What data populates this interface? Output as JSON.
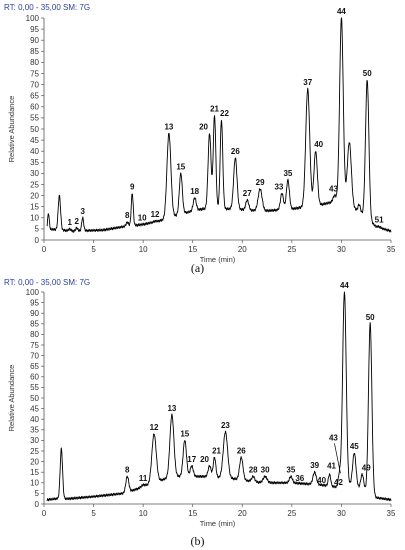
{
  "chart_data": [
    {
      "type": "line",
      "panel_label": "(a)",
      "header": {
        "rt_key": "RT:",
        "rt_value": "0,00 - 35,00",
        "sm_key": "SM:",
        "sm_value": "7G"
      },
      "xlabel": "Time (min)",
      "ylabel": "Relative Abundance",
      "xlim": [
        0,
        35
      ],
      "ylim": [
        0,
        100
      ],
      "xticks": [
        0,
        5,
        10,
        15,
        20,
        25,
        30,
        35
      ],
      "yticks": [
        0,
        5,
        10,
        15,
        20,
        25,
        30,
        35,
        40,
        45,
        50,
        55,
        60,
        65,
        70,
        75,
        80,
        85,
        90,
        95,
        100
      ],
      "baseline": [
        [
          0.3,
          5
        ],
        [
          3,
          4
        ],
        [
          6,
          4.5
        ],
        [
          8,
          6
        ],
        [
          10,
          7
        ],
        [
          12,
          9
        ],
        [
          14,
          12
        ],
        [
          16,
          14
        ],
        [
          19,
          14
        ],
        [
          22,
          13
        ],
        [
          25,
          14
        ],
        [
          28,
          16
        ],
        [
          30,
          18
        ],
        [
          32,
          12
        ],
        [
          33.5,
          6
        ],
        [
          35,
          4
        ]
      ],
      "peaks": [
        {
          "t": 0.45,
          "h": 12,
          "w": 0.08
        },
        {
          "t": 1.55,
          "h": 20,
          "w": 0.12
        },
        {
          "label": "1",
          "t": 2.6,
          "h": 5,
          "w": 0.1
        },
        {
          "label": "2",
          "t": 3.3,
          "h": 5.5,
          "w": 0.1
        },
        {
          "label": "3",
          "t": 3.9,
          "h": 10,
          "w": 0.1
        },
        {
          "label": "8",
          "t": 8.4,
          "h": 8,
          "w": 0.12
        },
        {
          "label": "9",
          "t": 8.9,
          "h": 21,
          "w": 0.1
        },
        {
          "label": "10",
          "t": 9.9,
          "h": 7,
          "w": 0.12
        },
        {
          "label": "12",
          "t": 11.2,
          "h": 8.5,
          "w": 0.12
        },
        {
          "label": "13",
          "t": 12.6,
          "h": 48,
          "w": 0.2
        },
        {
          "label": "15",
          "t": 13.8,
          "h": 30,
          "w": 0.15
        },
        {
          "label": "18",
          "t": 15.2,
          "h": 19,
          "w": 0.15
        },
        {
          "label": "20",
          "t": 16.7,
          "h": 48,
          "w": 0.15
        },
        {
          "label": "21",
          "t": 17.2,
          "h": 56,
          "w": 0.13
        },
        {
          "label": "22",
          "t": 17.9,
          "h": 54,
          "w": 0.13
        },
        {
          "label": "26",
          "t": 19.3,
          "h": 37,
          "w": 0.17
        },
        {
          "label": "27",
          "t": 20.5,
          "h": 18,
          "w": 0.15
        },
        {
          "label": "29",
          "t": 21.8,
          "h": 23,
          "w": 0.2
        },
        {
          "label": "33",
          "t": 24.0,
          "h": 21,
          "w": 0.15
        },
        {
          "label": "35",
          "t": 24.6,
          "h": 27,
          "w": 0.15
        },
        {
          "label": "37",
          "t": 26.6,
          "h": 68,
          "w": 0.2
        },
        {
          "label": "40",
          "t": 27.4,
          "h": 40,
          "w": 0.17
        },
        {
          "label": "43",
          "t": 29.3,
          "h": 20,
          "w": 0.15
        },
        {
          "label": "44",
          "t": 30.0,
          "h": 100,
          "w": 0.18
        },
        {
          "t": 30.8,
          "h": 44,
          "w": 0.2
        },
        {
          "t": 31.8,
          "h": 16,
          "w": 0.12
        },
        {
          "label": "50",
          "t": 32.6,
          "h": 72,
          "w": 0.17
        },
        {
          "label": "51",
          "t": 33.8,
          "h": 6,
          "w": 0.15
        }
      ]
    },
    {
      "type": "line",
      "panel_label": "(b)",
      "header": {
        "rt_key": "RT:",
        "rt_value": "0,00 - 35,00",
        "sm_key": "SM:",
        "sm_value": "7G"
      },
      "xlabel": "Time (min)",
      "ylabel": "Relative Abundance",
      "xlim": [
        0,
        35
      ],
      "ylim": [
        0,
        100
      ],
      "xticks": [
        0,
        5,
        10,
        15,
        20,
        25,
        30,
        35
      ],
      "yticks": [
        0,
        5,
        10,
        15,
        20,
        25,
        30,
        35,
        40,
        45,
        50,
        55,
        60,
        65,
        70,
        75,
        80,
        85,
        90,
        95,
        100
      ],
      "baseline": [
        [
          0.3,
          2
        ],
        [
          1.2,
          2.5
        ],
        [
          2.5,
          2.5
        ],
        [
          5,
          3.5
        ],
        [
          8,
          5
        ],
        [
          10,
          8
        ],
        [
          11,
          10
        ],
        [
          13,
          13
        ],
        [
          16,
          13
        ],
        [
          19,
          12
        ],
        [
          22,
          10
        ],
        [
          25,
          10
        ],
        [
          28,
          9
        ],
        [
          29.5,
          8
        ],
        [
          31,
          9
        ],
        [
          32,
          7
        ],
        [
          33.5,
          3
        ],
        [
          35,
          2
        ]
      ],
      "peaks": [
        {
          "t": 1.75,
          "h": 26,
          "w": 0.12
        },
        {
          "label": "8",
          "t": 8.4,
          "h": 13,
          "w": 0.15
        },
        {
          "label": "11",
          "t": 10.0,
          "h": 9,
          "w": 0.2
        },
        {
          "label": "12",
          "t": 11.1,
          "h": 33,
          "w": 0.22
        },
        {
          "label": "13",
          "t": 12.9,
          "h": 42,
          "w": 0.2
        },
        {
          "label": "15",
          "t": 14.2,
          "h": 30,
          "w": 0.17
        },
        {
          "label": "17",
          "t": 14.9,
          "h": 18,
          "w": 0.15
        },
        {
          "label": "20",
          "t": 16.7,
          "h": 18,
          "w": 0.15
        },
        {
          "label": "21",
          "t": 17.2,
          "h": 22,
          "w": 0.13
        },
        {
          "label": "23",
          "t": 18.3,
          "h": 34,
          "w": 0.22
        },
        {
          "label": "26",
          "t": 19.9,
          "h": 22,
          "w": 0.17
        },
        {
          "label": "28",
          "t": 21.1,
          "h": 13,
          "w": 0.15
        },
        {
          "label": "30",
          "t": 22.3,
          "h": 13,
          "w": 0.2
        },
        {
          "label": "35",
          "t": 24.9,
          "h": 13,
          "w": 0.15
        },
        {
          "label": "36",
          "t": 25.8,
          "h": 9,
          "w": 0.15
        },
        {
          "label": "39",
          "t": 27.3,
          "h": 15,
          "w": 0.17
        },
        {
          "label": "40",
          "t": 28.2,
          "h": 8,
          "w": 0.12
        },
        {
          "label": "41",
          "t": 28.8,
          "h": 14,
          "w": 0.12
        },
        {
          "label": "42",
          "t": 29.4,
          "h": 7,
          "w": 0.12
        },
        {
          "label": "43",
          "t": 29.8,
          "h": 14,
          "w": 0.12
        },
        {
          "label": "44",
          "t": 30.3,
          "h": 100,
          "w": 0.18
        },
        {
          "label": "45",
          "t": 31.3,
          "h": 24,
          "w": 0.17
        },
        {
          "label": "49",
          "t": 32.1,
          "h": 14,
          "w": 0.15
        },
        {
          "label": "50",
          "t": 32.9,
          "h": 85,
          "w": 0.17
        }
      ]
    }
  ]
}
